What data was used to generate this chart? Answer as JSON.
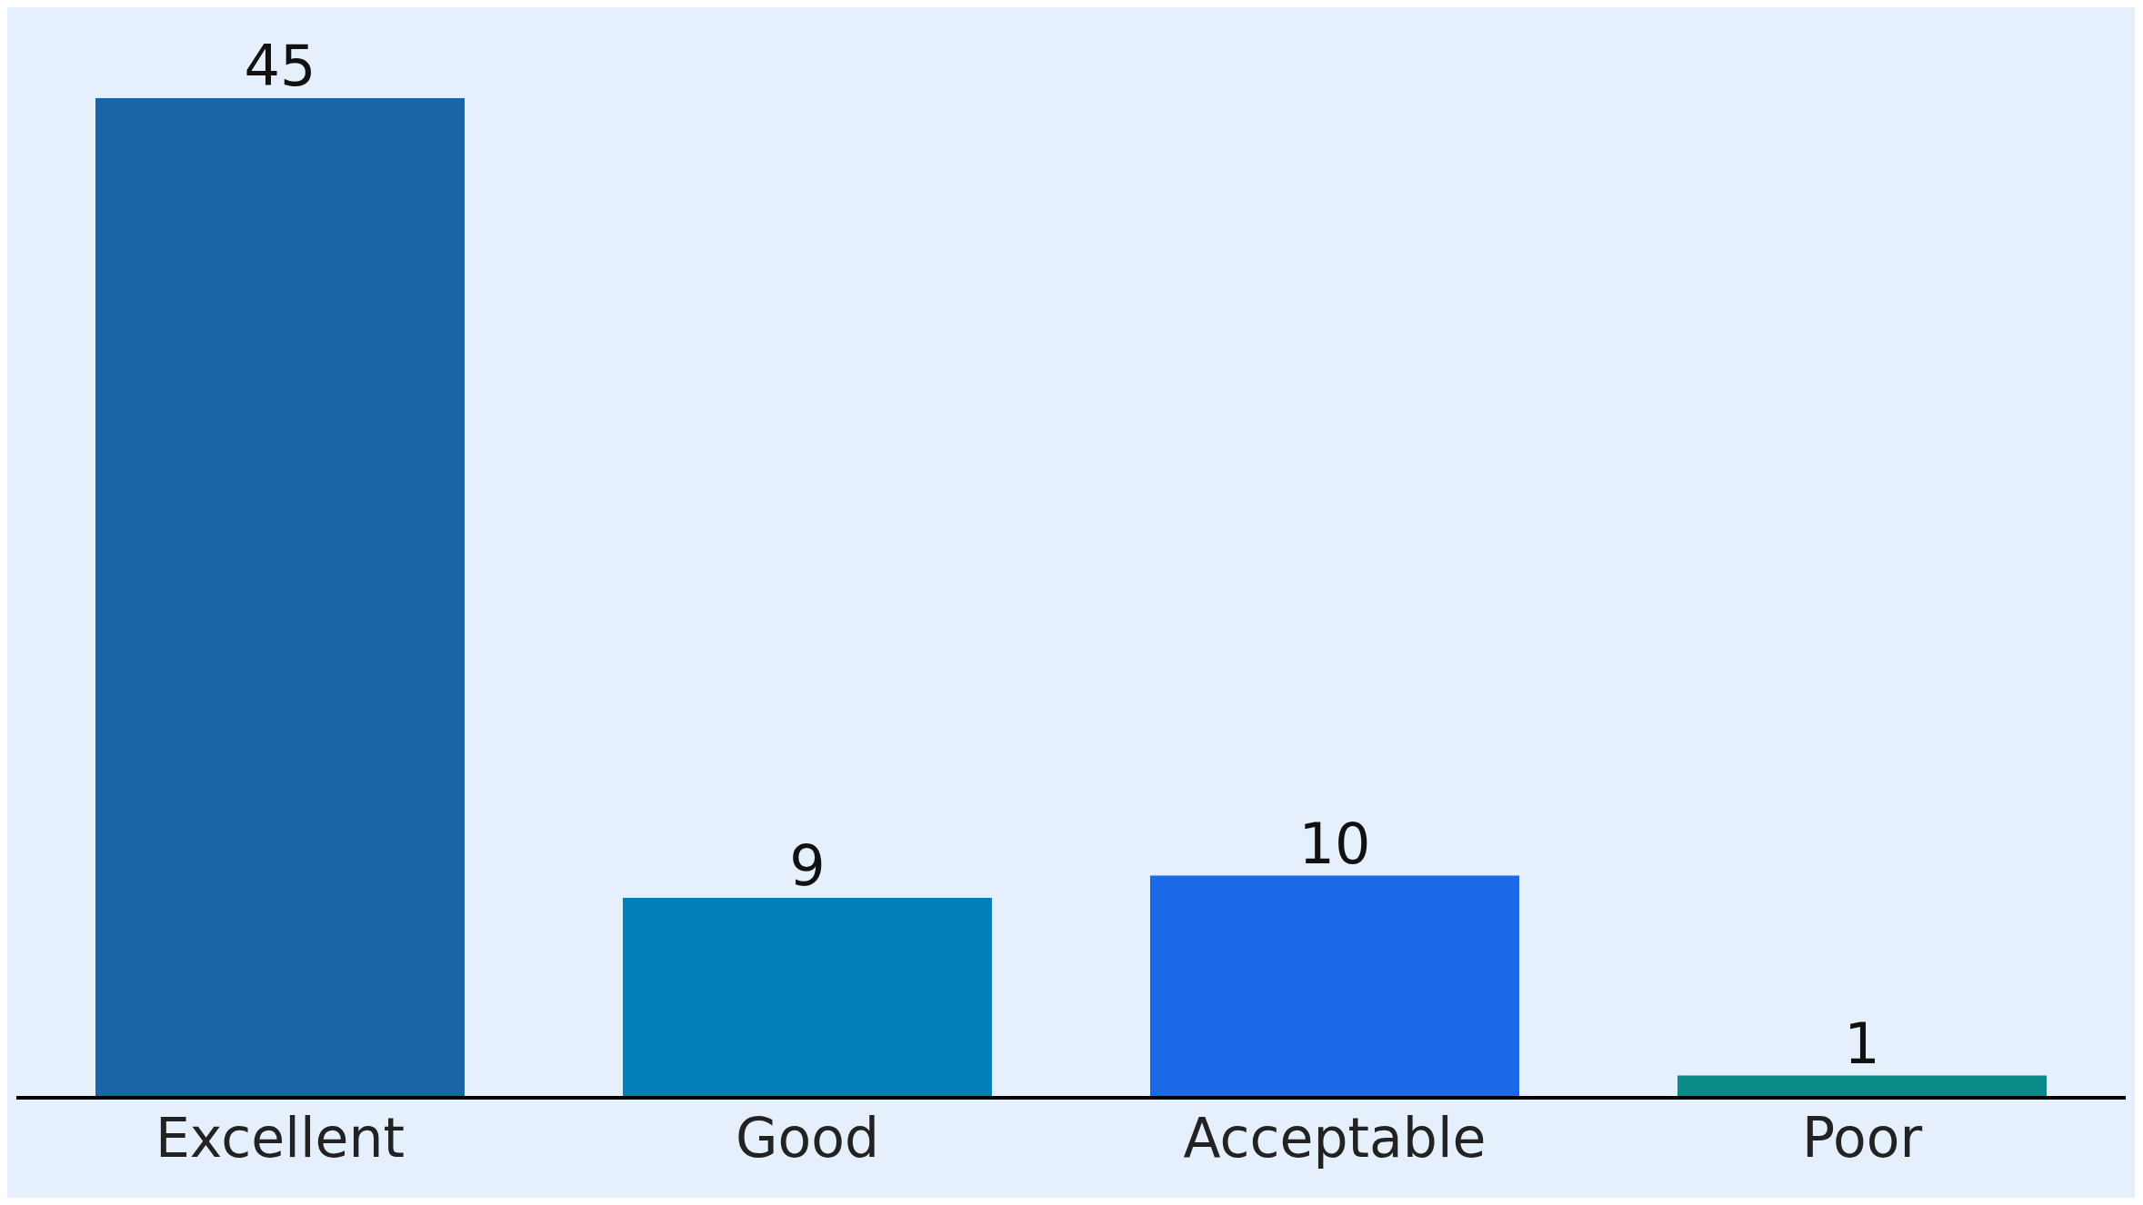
{
  "chart_data": {
    "type": "bar",
    "categories": [
      "Excellent",
      "Good",
      "Acceptable",
      "Poor"
    ],
    "values": [
      45,
      9,
      10,
      1
    ],
    "colors": [
      "#1c64a8",
      "#0380b8",
      "#1c69e8",
      "#0b8a8a"
    ],
    "data_labels": true,
    "grid": false,
    "legend": false
  }
}
